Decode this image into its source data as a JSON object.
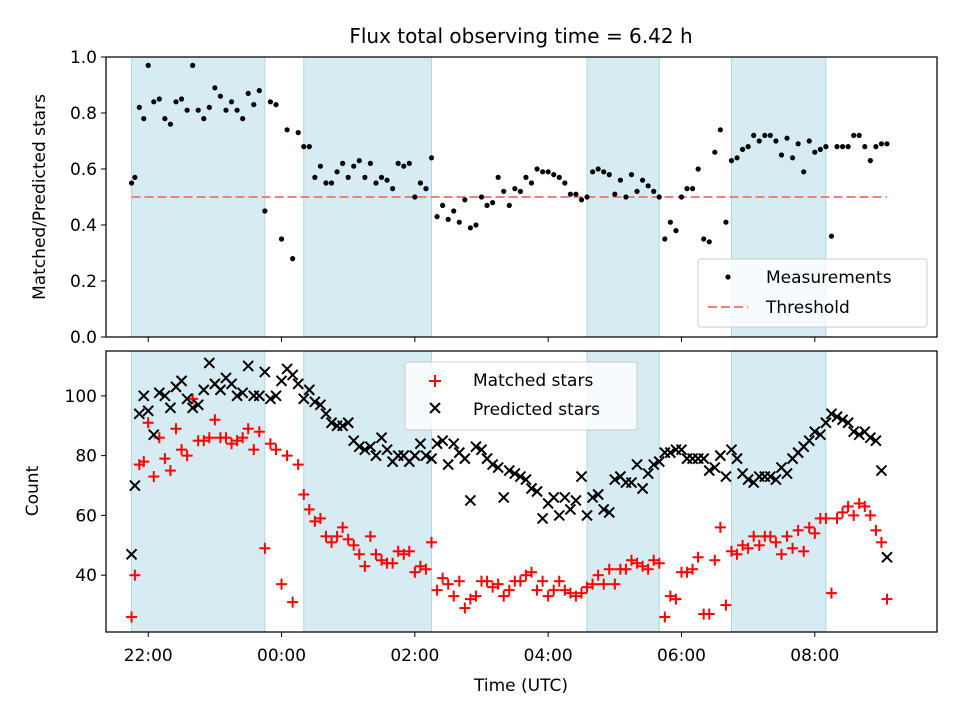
{
  "chart_data": [
    {
      "type": "scatter",
      "title": "Flux total observing time = 6.42 h",
      "ylabel": "Matched/Predicted stars",
      "xlabel": "",
      "xlim": [
        "21:22",
        "09:50"
      ],
      "ylim": [
        0,
        1.0
      ],
      "y_ticks": [
        "0.0",
        "0.2",
        "0.4",
        "0.6",
        "0.8",
        "1.0"
      ],
      "threshold": 0.5,
      "shaded_intervals": [
        [
          "21:45",
          "23:45"
        ],
        [
          "00:20",
          "02:15"
        ],
        [
          "04:35",
          "05:40"
        ],
        [
          "06:45",
          "08:10"
        ]
      ],
      "legend": {
        "position": "lower right",
        "entries": [
          "Measurements",
          "Threshold"
        ]
      },
      "series": [
        {
          "name": "Measurements",
          "color": "#000000",
          "marker": "dot",
          "x": [
            "21:45",
            "21:48",
            "21:52",
            "21:56",
            "22:00",
            "22:05",
            "22:10",
            "22:15",
            "22:20",
            "22:25",
            "22:30",
            "22:35",
            "22:40",
            "22:45",
            "22:50",
            "22:55",
            "23:00",
            "23:05",
            "23:10",
            "23:15",
            "23:20",
            "23:25",
            "23:30",
            "23:35",
            "23:40",
            "23:45",
            "23:50",
            "23:55",
            "00:00",
            "00:05",
            "00:10",
            "00:15",
            "00:20",
            "00:25",
            "00:30",
            "00:35",
            "00:40",
            "00:45",
            "00:50",
            "00:55",
            "01:00",
            "01:05",
            "01:10",
            "01:15",
            "01:20",
            "01:25",
            "01:30",
            "01:35",
            "01:40",
            "01:45",
            "01:50",
            "01:55",
            "02:00",
            "02:05",
            "02:10",
            "02:15",
            "02:20",
            "02:25",
            "02:30",
            "02:35",
            "02:40",
            "02:45",
            "02:50",
            "02:55",
            "03:00",
            "03:05",
            "03:10",
            "03:15",
            "03:20",
            "03:25",
            "03:30",
            "03:35",
            "03:40",
            "03:45",
            "03:50",
            "03:55",
            "04:00",
            "04:05",
            "04:10",
            "04:15",
            "04:20",
            "04:25",
            "04:30",
            "04:35",
            "04:40",
            "04:45",
            "04:50",
            "04:55",
            "05:00",
            "05:05",
            "05:10",
            "05:15",
            "05:20",
            "05:25",
            "05:30",
            "05:35",
            "05:40",
            "05:45",
            "05:50",
            "05:55",
            "06:00",
            "06:05",
            "06:10",
            "06:15",
            "06:20",
            "06:25",
            "06:30",
            "06:35",
            "06:40",
            "06:45",
            "06:50",
            "06:55",
            "07:00",
            "07:05",
            "07:10",
            "07:15",
            "07:20",
            "07:25",
            "07:30",
            "07:35",
            "07:40",
            "07:45",
            "07:50",
            "07:55",
            "08:00",
            "08:05",
            "08:10",
            "08:15",
            "08:20",
            "08:25",
            "08:30",
            "08:35",
            "08:40",
            "08:45",
            "08:50",
            "08:55",
            "09:00",
            "09:05"
          ],
          "values": [
            0.55,
            0.57,
            0.82,
            0.78,
            0.97,
            0.84,
            0.85,
            0.78,
            0.76,
            0.84,
            0.85,
            0.81,
            0.97,
            0.81,
            0.78,
            0.82,
            0.89,
            0.86,
            0.81,
            0.84,
            0.81,
            0.78,
            0.87,
            0.83,
            0.88,
            0.45,
            0.84,
            0.83,
            0.35,
            0.74,
            0.28,
            0.73,
            0.68,
            0.68,
            0.57,
            0.61,
            0.55,
            0.55,
            0.59,
            0.62,
            0.57,
            0.61,
            0.63,
            0.57,
            0.62,
            0.55,
            0.57,
            0.56,
            0.53,
            0.62,
            0.61,
            0.62,
            0.5,
            0.55,
            0.53,
            0.64,
            0.43,
            0.47,
            0.42,
            0.45,
            0.41,
            0.49,
            0.39,
            0.4,
            0.5,
            0.47,
            0.48,
            0.57,
            0.52,
            0.47,
            0.53,
            0.52,
            0.57,
            0.55,
            0.6,
            0.59,
            0.59,
            0.58,
            0.57,
            0.55,
            0.51,
            0.51,
            0.49,
            0.5,
            0.59,
            0.6,
            0.59,
            0.58,
            0.51,
            0.56,
            0.5,
            0.58,
            0.52,
            0.56,
            0.54,
            0.52,
            0.5,
            0.35,
            0.41,
            0.38,
            0.5,
            0.53,
            0.53,
            0.6,
            0.35,
            0.34,
            0.66,
            0.74,
            0.41,
            0.63,
            0.64,
            0.67,
            0.68,
            0.72,
            0.7,
            0.72,
            0.72,
            0.7,
            0.65,
            0.71,
            0.64,
            0.69,
            0.59,
            0.7,
            0.66,
            0.67,
            0.68,
            0.36,
            0.68,
            0.68,
            0.68,
            0.72,
            0.72,
            0.68,
            0.63,
            0.68,
            0.69,
            0.69
          ]
        }
      ]
    },
    {
      "type": "scatter",
      "title": "",
      "xlabel": "Time (UTC)",
      "ylabel": "Count",
      "xlim": [
        "21:22",
        "09:50"
      ],
      "ylim": [
        21,
        115
      ],
      "x_ticks": [
        "22:00",
        "00:00",
        "02:00",
        "04:00",
        "06:00",
        "08:00"
      ],
      "y_ticks": [
        "40",
        "60",
        "80",
        "100"
      ],
      "shaded_intervals": [
        [
          "21:45",
          "23:45"
        ],
        [
          "00:20",
          "02:15"
        ],
        [
          "04:35",
          "05:40"
        ],
        [
          "06:45",
          "08:10"
        ]
      ],
      "legend": {
        "position": "upper center",
        "entries": [
          "Matched stars",
          "Predicted stars"
        ]
      },
      "series": [
        {
          "name": "Matched stars",
          "color": "#ff0000",
          "marker": "plus",
          "x": [
            "21:45",
            "21:48",
            "21:52",
            "21:56",
            "22:00",
            "22:05",
            "22:10",
            "22:15",
            "22:20",
            "22:25",
            "22:30",
            "22:35",
            "22:40",
            "22:45",
            "22:50",
            "22:55",
            "23:00",
            "23:05",
            "23:10",
            "23:15",
            "23:20",
            "23:25",
            "23:30",
            "23:35",
            "23:40",
            "23:45",
            "23:50",
            "23:55",
            "00:00",
            "00:05",
            "00:10",
            "00:15",
            "00:20",
            "00:25",
            "00:30",
            "00:35",
            "00:40",
            "00:45",
            "00:50",
            "00:55",
            "01:00",
            "01:05",
            "01:10",
            "01:15",
            "01:20",
            "01:25",
            "01:30",
            "01:35",
            "01:40",
            "01:45",
            "01:50",
            "01:55",
            "02:00",
            "02:05",
            "02:10",
            "02:15",
            "02:20",
            "02:25",
            "02:30",
            "02:35",
            "02:40",
            "02:45",
            "02:50",
            "02:55",
            "03:00",
            "03:05",
            "03:10",
            "03:15",
            "03:20",
            "03:25",
            "03:30",
            "03:35",
            "03:40",
            "03:45",
            "03:50",
            "03:55",
            "04:00",
            "04:05",
            "04:10",
            "04:15",
            "04:20",
            "04:25",
            "04:30",
            "04:35",
            "04:40",
            "04:45",
            "04:50",
            "04:55",
            "05:00",
            "05:05",
            "05:10",
            "05:15",
            "05:20",
            "05:25",
            "05:30",
            "05:35",
            "05:40",
            "05:45",
            "05:50",
            "05:55",
            "06:00",
            "06:05",
            "06:10",
            "06:15",
            "06:20",
            "06:25",
            "06:30",
            "06:35",
            "06:40",
            "06:45",
            "06:50",
            "06:55",
            "07:00",
            "07:05",
            "07:10",
            "07:15",
            "07:20",
            "07:25",
            "07:30",
            "07:35",
            "07:40",
            "07:45",
            "07:50",
            "07:55",
            "08:00",
            "08:05",
            "08:10",
            "08:15",
            "08:20",
            "08:25",
            "08:30",
            "08:35",
            "08:40",
            "08:45",
            "08:50",
            "08:55",
            "09:00",
            "09:05"
          ],
          "values": [
            26,
            40,
            77,
            78,
            91,
            73,
            86,
            79,
            75,
            89,
            82,
            80,
            99,
            85,
            85,
            86,
            92,
            86,
            86,
            84,
            85,
            86,
            89,
            82,
            88,
            49,
            84,
            82,
            37,
            80,
            31,
            77,
            67,
            62,
            58,
            59,
            53,
            51,
            53,
            56,
            52,
            50,
            47,
            43,
            53,
            47,
            45,
            44,
            44,
            48,
            47,
            48,
            41,
            43,
            42,
            51,
            35,
            39,
            37,
            33,
            38,
            29,
            32,
            33,
            38,
            38,
            36,
            37,
            33,
            35,
            38,
            38,
            40,
            41,
            35,
            38,
            33,
            35,
            38,
            35,
            34,
            33,
            34,
            36,
            37,
            40,
            37,
            42,
            37,
            42,
            42,
            45,
            44,
            43,
            42,
            45,
            44,
            26,
            33,
            32,
            41,
            41,
            42,
            46,
            27,
            27,
            45,
            56,
            30,
            48,
            47,
            50,
            49,
            53,
            50,
            53,
            53,
            51,
            47,
            53,
            49,
            55,
            48,
            56,
            54,
            59,
            59,
            34,
            59,
            61,
            63,
            60,
            64,
            63,
            60,
            55,
            51,
            32
          ]
        },
        {
          "name": "Predicted stars",
          "color": "#000000",
          "marker": "x",
          "x": [
            "21:45",
            "21:48",
            "21:52",
            "21:56",
            "22:00",
            "22:05",
            "22:10",
            "22:15",
            "22:20",
            "22:25",
            "22:30",
            "22:35",
            "22:40",
            "22:45",
            "22:50",
            "22:55",
            "23:00",
            "23:05",
            "23:10",
            "23:15",
            "23:20",
            "23:25",
            "23:30",
            "23:35",
            "23:40",
            "23:45",
            "23:50",
            "23:55",
            "00:00",
            "00:05",
            "00:10",
            "00:15",
            "00:20",
            "00:25",
            "00:30",
            "00:35",
            "00:40",
            "00:45",
            "00:50",
            "00:55",
            "01:00",
            "01:05",
            "01:10",
            "01:15",
            "01:20",
            "01:25",
            "01:30",
            "01:35",
            "01:40",
            "01:45",
            "01:50",
            "01:55",
            "02:00",
            "02:05",
            "02:10",
            "02:15",
            "02:20",
            "02:25",
            "02:30",
            "02:35",
            "02:40",
            "02:45",
            "02:50",
            "02:55",
            "03:00",
            "03:05",
            "03:10",
            "03:15",
            "03:20",
            "03:25",
            "03:30",
            "03:35",
            "03:40",
            "03:45",
            "03:50",
            "03:55",
            "04:00",
            "04:05",
            "04:10",
            "04:15",
            "04:20",
            "04:25",
            "04:30",
            "04:35",
            "04:40",
            "04:45",
            "04:50",
            "04:55",
            "05:00",
            "05:05",
            "05:10",
            "05:15",
            "05:20",
            "05:25",
            "05:30",
            "05:35",
            "05:40",
            "05:45",
            "05:50",
            "05:55",
            "06:00",
            "06:05",
            "06:10",
            "06:15",
            "06:20",
            "06:25",
            "06:30",
            "06:35",
            "06:40",
            "06:45",
            "06:50",
            "06:55",
            "07:00",
            "07:05",
            "07:10",
            "07:15",
            "07:20",
            "07:25",
            "07:30",
            "07:35",
            "07:40",
            "07:45",
            "07:50",
            "07:55",
            "08:00",
            "08:05",
            "08:10",
            "08:15",
            "08:20",
            "08:25",
            "08:30",
            "08:35",
            "08:40",
            "08:45",
            "08:50",
            "08:55",
            "09:00",
            "09:05"
          ],
          "values": [
            47,
            70,
            94,
            100,
            95,
            87,
            101,
            100,
            96,
            103,
            105,
            99,
            96,
            97,
            102,
            111,
            104,
            102,
            106,
            104,
            100,
            101,
            110,
            100,
            100,
            108,
            99,
            100,
            105,
            109,
            107,
            104,
            99,
            102,
            98,
            97,
            94,
            91,
            90,
            90,
            91,
            85,
            83,
            82,
            83,
            80,
            86,
            82,
            78,
            80,
            80,
            78,
            80,
            84,
            80,
            79,
            84,
            85,
            77,
            84,
            81,
            79,
            65,
            83,
            82,
            79,
            77,
            76,
            66,
            75,
            74,
            73,
            72,
            69,
            68,
            59,
            64,
            66,
            60,
            66,
            62,
            65,
            73,
            60,
            66,
            67,
            62,
            61,
            72,
            73,
            71,
            71,
            77,
            69,
            74,
            77,
            78,
            81,
            81,
            82,
            82,
            79,
            79,
            79,
            79,
            75,
            76,
            80,
            73,
            82,
            79,
            74,
            72,
            71,
            73,
            73,
            73,
            72,
            76,
            74,
            79,
            81,
            83,
            85,
            88,
            87,
            91,
            94,
            93,
            92,
            91,
            88,
            87,
            88,
            86,
            85,
            75,
            46
          ]
        }
      ]
    }
  ]
}
